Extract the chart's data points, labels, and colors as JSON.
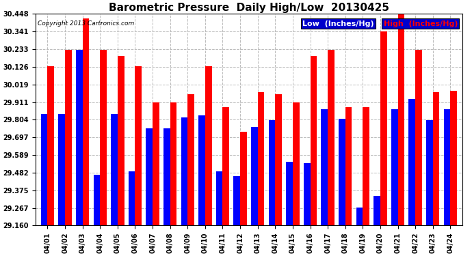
{
  "title": "Barometric Pressure  Daily High/Low  20130425",
  "copyright": "Copyright 2013 Cartronics.com",
  "legend_low": "Low  (Inches/Hg)",
  "legend_high": "High  (Inches/Hg)",
  "categories": [
    "04/01",
    "04/02",
    "04/03",
    "04/04",
    "04/05",
    "04/06",
    "04/07",
    "04/08",
    "04/09",
    "04/10",
    "04/11",
    "04/12",
    "04/13",
    "04/14",
    "04/15",
    "04/16",
    "04/17",
    "04/18",
    "04/19",
    "04/20",
    "04/21",
    "04/22",
    "04/23",
    "04/24"
  ],
  "low_values": [
    29.84,
    29.84,
    30.23,
    29.47,
    29.84,
    29.49,
    29.75,
    29.75,
    29.82,
    29.83,
    29.49,
    29.46,
    29.76,
    29.8,
    29.55,
    29.54,
    29.87,
    29.81,
    29.27,
    29.34,
    29.87,
    29.93,
    29.8,
    29.87
  ],
  "high_values": [
    30.13,
    30.23,
    30.42,
    30.23,
    30.19,
    30.13,
    29.91,
    29.91,
    29.96,
    30.13,
    29.88,
    29.73,
    29.97,
    29.96,
    29.91,
    30.19,
    30.23,
    29.88,
    29.88,
    30.34,
    30.45,
    30.23,
    29.97,
    29.98
  ],
  "ylim_min": 29.16,
  "ylim_max": 30.448,
  "yticks": [
    29.16,
    29.267,
    29.375,
    29.482,
    29.589,
    29.697,
    29.804,
    29.911,
    30.019,
    30.126,
    30.233,
    30.341,
    30.448
  ],
  "ytick_labels": [
    "29.160",
    "29.267",
    "29.375",
    "29.482",
    "29.589",
    "29.697",
    "29.804",
    "29.911",
    "30.019",
    "30.126",
    "30.233",
    "30.341",
    "30.448"
  ],
  "bar_color_low": "#0000ff",
  "bar_color_high": "#ff0000",
  "bg_color": "#ffffff",
  "grid_color": "#bbbbbb",
  "title_fontsize": 11,
  "tick_fontsize": 7,
  "legend_fontsize": 8
}
